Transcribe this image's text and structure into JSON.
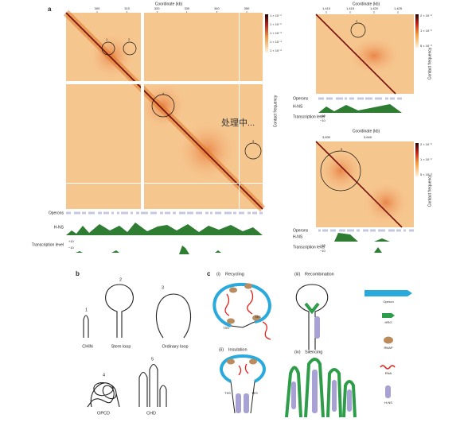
{
  "panel_a": {
    "label": "a",
    "main": {
      "axis_title": "Coordinate (kb)",
      "ticks": [
        "300",
        "310",
        "320",
        "330",
        "340",
        "350"
      ],
      "colorbar": [
        "1 × 10⁻¹",
        "1 × 10⁻²",
        "1 × 10⁻³",
        "1 × 10⁻⁴",
        "1 × 10⁻⁵"
      ],
      "colorbar_title": "Contact frequency",
      "circles": [
        "1",
        "2",
        "4",
        "3"
      ],
      "tracks": [
        "Operons",
        "H-NS",
        "Transcription level"
      ],
      "track_ticks": [
        "+10",
        "−10"
      ]
    },
    "top_right": {
      "axis_title": "Coordinate (kb)",
      "ticks": [
        "1,410",
        "1,415",
        "1,420",
        "1,425"
      ],
      "colorbar": [
        "2 × 10⁻²",
        "1 × 10⁻²",
        "5 × 10⁻³"
      ],
      "colorbar_title": "Contact frequency",
      "circles": [
        "2"
      ],
      "tracks": [
        "Operons",
        "H-NS",
        "Transcription level"
      ],
      "track_ticks": [
        "+10",
        "−10"
      ]
    },
    "bottom_right": {
      "axis_title": "Coordinate (kb)",
      "ticks": [
        "3,630",
        "3,640"
      ],
      "colorbar": [
        "2 × 10⁻²",
        "1 × 10⁻²",
        "5 × 10⁻³"
      ],
      "colorbar_title": "Contact frequency",
      "circles": [
        "5"
      ],
      "tracks": [
        "Operons",
        "H-NS",
        "Transcription level"
      ],
      "track_ticks": [
        "+10",
        "−10"
      ]
    }
  },
  "overlay": "处理中...",
  "panel_b": {
    "label": "b",
    "structures": [
      {
        "number": "1",
        "name": "CHIN"
      },
      {
        "number": "2",
        "name": "Stem loop"
      },
      {
        "number": "3",
        "name": "Ordinary loop"
      },
      {
        "number": "4",
        "name": "OPCD"
      },
      {
        "number": "5",
        "name": "CHD"
      }
    ]
  },
  "panel_c": {
    "label": "c",
    "models": [
      {
        "number": "(i)",
        "name": "Recycling"
      },
      {
        "number": "(ii)",
        "name": "Insulation"
      },
      {
        "number": "(iii)",
        "name": "Recombination"
      },
      {
        "number": "(iv)",
        "name": "Silencing"
      }
    ],
    "sites": [
      "TSS",
      "TES"
    ],
    "legend": [
      "Operon",
      "HRG",
      "RNAP",
      "RNA",
      "H-NS"
    ]
  }
}
